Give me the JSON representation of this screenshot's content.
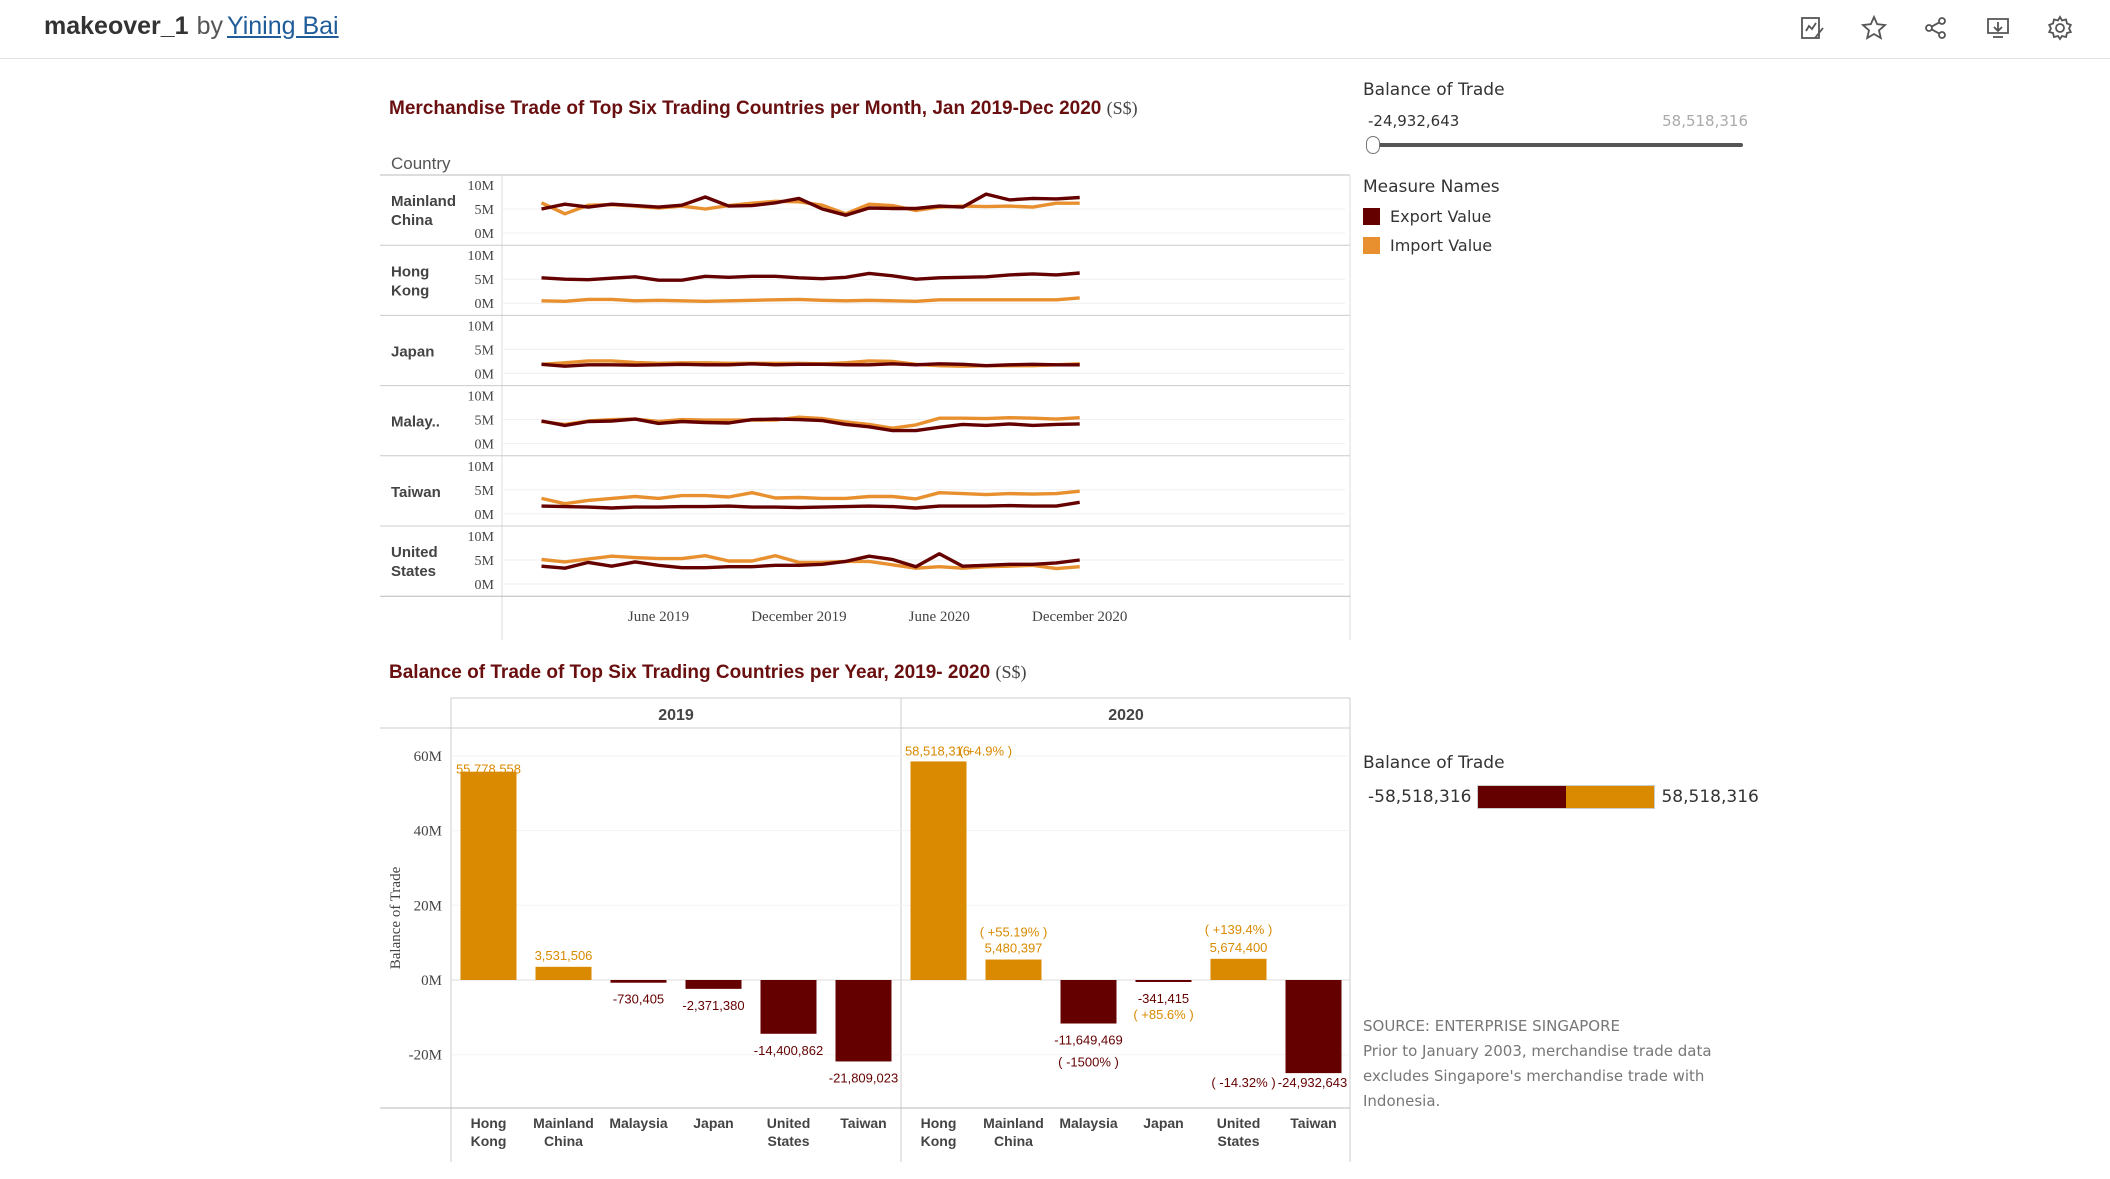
{
  "header": {
    "workbook_title": "makeover_1",
    "by_label": "by",
    "author": "Yining Bai",
    "tools": [
      "edit-icon",
      "star-icon",
      "share-icon",
      "download-icon",
      "settings-icon"
    ]
  },
  "colors": {
    "export": "#650000",
    "import": "#e8902f",
    "positive": "#d98a00",
    "negative": "#650000",
    "title": "#6a0f10"
  },
  "line_chart": {
    "title": "Merchandise Trade of Top Six Trading Countries per Month, Jan 2019-Dec 2020",
    "unit": "(S$)",
    "row_header": "Country",
    "rows": [
      "Mainland China",
      "Hong Kong",
      "Japan",
      "Malay..",
      "Taiwan",
      "United States"
    ],
    "y_ticks": [
      "10M",
      "5M",
      "0M"
    ],
    "x_ticks": [
      "June 2019",
      "December 2019",
      "June 2020",
      "December 2020"
    ]
  },
  "bar_chart": {
    "title": "Balance of Trade of Top Six Trading Countries per Year, 2019- 2020",
    "unit": "(S$)",
    "y_axis_label": "Balance of Trade",
    "y_ticks": [
      "60M",
      "40M",
      "20M",
      "0M",
      "-20M"
    ],
    "panels": [
      "2019",
      "2020"
    ],
    "categories": [
      "Hong Kong",
      "Mainland China",
      "Malaysia",
      "Japan",
      "United States",
      "Taiwan"
    ],
    "value_labels_2019": [
      "55,778,558",
      "3,531,506",
      "-730,405",
      "-2,371,380",
      "-14,400,862",
      "-21,809,023"
    ],
    "value_labels_2020": [
      "58,518,316",
      "5,480,397",
      "-11,649,469",
      "-341,415",
      "5,674,400",
      "-24,932,643"
    ],
    "change_labels_2020": [
      "( +4.9% )",
      "( +55.19% )",
      "( -1500% )",
      "( +85.6% )",
      "( +139.4% )",
      "( -14.32% )"
    ]
  },
  "filter": {
    "title": "Balance of Trade",
    "min": "-24,932,643",
    "max": "58,518,316"
  },
  "legend": {
    "title": "Measure Names",
    "items": [
      "Export Value",
      "Import Value"
    ]
  },
  "color_legend": {
    "title": "Balance of Trade",
    "min": "-58,518,316",
    "max": "58,518,316"
  },
  "source": {
    "line1": "SOURCE: ENTERPRISE SINGAPORE",
    "line2": "Prior to January 2003, merchandise trade data",
    "line3": "excludes Singapore's merchandise trade with",
    "line4": "Indonesia."
  },
  "chart_data": [
    {
      "type": "line",
      "title": "Merchandise Trade of Top Six Trading Countries per Month, Jan 2019-Dec 2020",
      "x": [
        "2019-01",
        "2019-02",
        "2019-03",
        "2019-04",
        "2019-05",
        "2019-06",
        "2019-07",
        "2019-08",
        "2019-09",
        "2019-10",
        "2019-11",
        "2019-12",
        "2020-01",
        "2020-02",
        "2020-03",
        "2020-04",
        "2020-05",
        "2020-06",
        "2020-07",
        "2020-08",
        "2020-09",
        "2020-10",
        "2020-11",
        "2020-12"
      ],
      "ylim": [
        0,
        10000000
      ],
      "panels": [
        {
          "country": "Mainland China",
          "series": [
            {
              "name": "Export Value",
              "values": [
                5.0,
                6.0,
                5.4,
                6.0,
                5.7,
                5.4,
                5.8,
                7.5,
                5.6,
                5.7,
                6.3,
                7.2,
                5.0,
                3.7,
                5.2,
                5.1,
                5.1,
                5.6,
                5.4,
                8.1,
                6.9,
                7.2,
                7.1,
                7.4
              ]
            },
            {
              "name": "Import Value",
              "values": [
                6.3,
                4.0,
                5.8,
                5.9,
                5.6,
                5.2,
                5.6,
                5.0,
                5.7,
                6.2,
                6.6,
                6.5,
                5.8,
                4.0,
                6.0,
                5.7,
                4.7,
                5.4,
                5.6,
                5.5,
                5.6,
                5.4,
                6.2,
                6.2
              ]
            }
          ]
        },
        {
          "country": "Hong Kong",
          "series": [
            {
              "name": "Export Value",
              "values": [
                5.3,
                5.0,
                4.9,
                5.2,
                5.5,
                4.8,
                4.8,
                5.6,
                5.4,
                5.6,
                5.6,
                5.3,
                5.1,
                5.4,
                6.2,
                5.7,
                5.0,
                5.3,
                5.4,
                5.5,
                5.9,
                6.1,
                5.9,
                6.3
              ]
            },
            {
              "name": "Import Value",
              "values": [
                0.5,
                0.4,
                0.8,
                0.8,
                0.5,
                0.6,
                0.5,
                0.4,
                0.5,
                0.6,
                0.7,
                0.8,
                0.6,
                0.5,
                0.6,
                0.5,
                0.4,
                0.7,
                0.7,
                0.7,
                0.7,
                0.7,
                0.7,
                1.1
              ]
            }
          ]
        },
        {
          "country": "Japan",
          "series": [
            {
              "name": "Export Value",
              "values": [
                1.9,
                1.5,
                1.8,
                1.8,
                1.7,
                1.8,
                1.9,
                1.8,
                1.8,
                2.0,
                1.8,
                1.9,
                1.9,
                1.8,
                1.8,
                2.0,
                1.8,
                2.0,
                1.9,
                1.6,
                1.8,
                1.9,
                1.8,
                1.8
              ]
            },
            {
              "name": "Import Value",
              "values": [
                1.9,
                2.2,
                2.6,
                2.6,
                2.3,
                2.1,
                2.2,
                2.2,
                2.1,
                2.1,
                2.1,
                2.1,
                2.0,
                2.2,
                2.6,
                2.5,
                1.9,
                1.6,
                1.5,
                1.6,
                1.6,
                1.6,
                1.8,
                2.0
              ]
            }
          ]
        },
        {
          "country": "Malaysia",
          "series": [
            {
              "name": "Export Value",
              "values": [
                4.7,
                3.8,
                4.6,
                4.7,
                5.1,
                4.2,
                4.6,
                4.4,
                4.3,
                5.0,
                5.1,
                5.0,
                4.8,
                4.0,
                3.5,
                2.7,
                2.7,
                3.4,
                4.0,
                3.8,
                4.1,
                3.8,
                4.0,
                4.1
              ]
            },
            {
              "name": "Import Value",
              "values": [
                4.6,
                4.0,
                4.7,
                5.0,
                5.1,
                4.6,
                5.0,
                4.9,
                4.9,
                4.9,
                4.9,
                5.5,
                5.2,
                4.5,
                4.0,
                3.2,
                3.9,
                5.3,
                5.3,
                5.2,
                5.4,
                5.3,
                5.1,
                5.4
              ]
            }
          ]
        },
        {
          "country": "Taiwan",
          "series": [
            {
              "name": "Export Value",
              "values": [
                1.6,
                1.5,
                1.4,
                1.2,
                1.4,
                1.4,
                1.5,
                1.5,
                1.6,
                1.4,
                1.4,
                1.3,
                1.4,
                1.5,
                1.6,
                1.5,
                1.2,
                1.6,
                1.6,
                1.6,
                1.7,
                1.6,
                1.6,
                2.4
              ]
            },
            {
              "name": "Import Value",
              "values": [
                3.2,
                2.1,
                2.8,
                3.2,
                3.6,
                3.2,
                3.8,
                3.8,
                3.5,
                4.4,
                3.3,
                3.4,
                3.2,
                3.2,
                3.6,
                3.6,
                3.1,
                4.4,
                4.2,
                4.0,
                4.2,
                4.1,
                4.2,
                4.7
              ]
            }
          ]
        },
        {
          "country": "United States",
          "series": [
            {
              "name": "Export Value",
              "values": [
                3.7,
                3.3,
                4.5,
                3.7,
                4.6,
                3.9,
                3.4,
                3.4,
                3.6,
                3.6,
                3.9,
                3.9,
                4.1,
                4.7,
                5.8,
                5.1,
                3.6,
                6.3,
                3.7,
                3.9,
                4.1,
                4.1,
                4.4,
                5.0
              ]
            },
            {
              "name": "Import Value",
              "values": [
                5.1,
                4.6,
                5.2,
                5.8,
                5.5,
                5.3,
                5.3,
                5.9,
                4.8,
                4.8,
                5.9,
                4.5,
                4.5,
                4.7,
                4.7,
                4.0,
                3.3,
                3.6,
                3.3,
                3.6,
                3.7,
                3.9,
                3.2,
                3.6
              ]
            }
          ]
        }
      ]
    },
    {
      "type": "bar",
      "title": "Balance of Trade of Top Six Trading Countries per Year, 2019- 2020",
      "ylabel": "Balance of Trade",
      "ylim": [
        -25000000,
        62000000
      ],
      "categories": [
        "Hong Kong",
        "Mainland China",
        "Malaysia",
        "Japan",
        "United States",
        "Taiwan"
      ],
      "series": [
        {
          "name": "2019",
          "values": [
            55778558,
            3531506,
            -730405,
            -2371380,
            -14400862,
            -21809023
          ]
        },
        {
          "name": "2020",
          "values": [
            58518316,
            5480397,
            -11649469,
            -341415,
            5674400,
            -24932643
          ]
        }
      ]
    }
  ]
}
